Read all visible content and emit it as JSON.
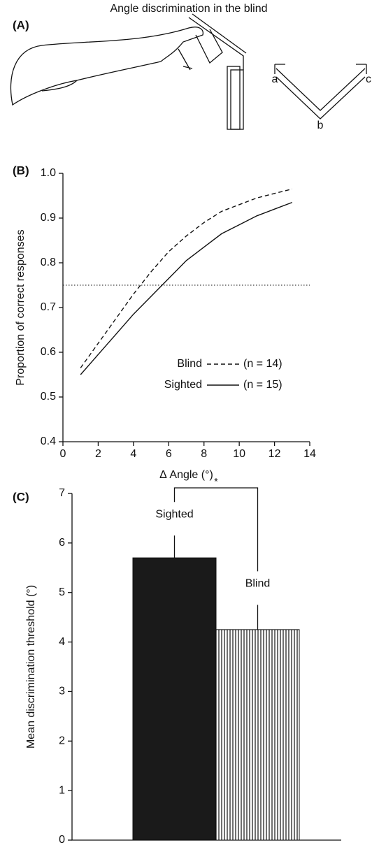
{
  "title": "Angle discrimination in the blind",
  "illustration": {
    "panel": "(A)",
    "labels": [
      "a",
      "b",
      "c"
    ]
  },
  "chart_data": [
    {
      "type": "line",
      "panel": "(B)",
      "xlabel": "Δ Angle (°)",
      "ylabel": "Proportion of correct responses",
      "x": [
        1,
        2,
        3,
        4,
        5,
        6,
        7,
        8,
        9,
        10,
        11,
        12,
        13
      ],
      "series": [
        {
          "name": "Blind",
          "n_label": "(n = 14)",
          "color": "#111111",
          "dash": true,
          "values": [
            0.565,
            0.62,
            0.675,
            0.73,
            0.78,
            0.825,
            0.86,
            0.89,
            0.915,
            0.93,
            0.945,
            0.955,
            0.965
          ]
        },
        {
          "name": "Sighted",
          "n_label": "(n = 15)",
          "color": "#111111",
          "dash": false,
          "values": [
            0.55,
            0.595,
            0.64,
            0.685,
            0.725,
            0.765,
            0.805,
            0.835,
            0.865,
            0.885,
            0.905,
            0.92,
            0.935
          ]
        }
      ],
      "reference_line": 0.75,
      "xlim": [
        0,
        14
      ],
      "xticks": [
        0,
        2,
        4,
        6,
        8,
        10,
        12,
        14
      ],
      "ylim": [
        0.4,
        1
      ],
      "yticks": [
        0.4,
        0.5,
        0.6,
        0.7,
        0.8,
        0.9,
        {
          "value": 1,
          "label": "1.0"
        }
      ]
    },
    {
      "type": "bar",
      "panel": "(C)",
      "ylabel": "Mean discrimination threshold (°)",
      "categories": [
        "Sighted",
        "Blind"
      ],
      "values": [
        5.7,
        4.25
      ],
      "errors": [
        0.45,
        0.5
      ],
      "colors": [
        "#1a1a1a",
        "#ffffff"
      ],
      "hatch": [
        false,
        true
      ],
      "significance": "*",
      "ylim": [
        0,
        7
      ],
      "yticks": [
        0,
        1,
        2,
        3,
        4,
        5,
        6,
        7
      ]
    }
  ]
}
